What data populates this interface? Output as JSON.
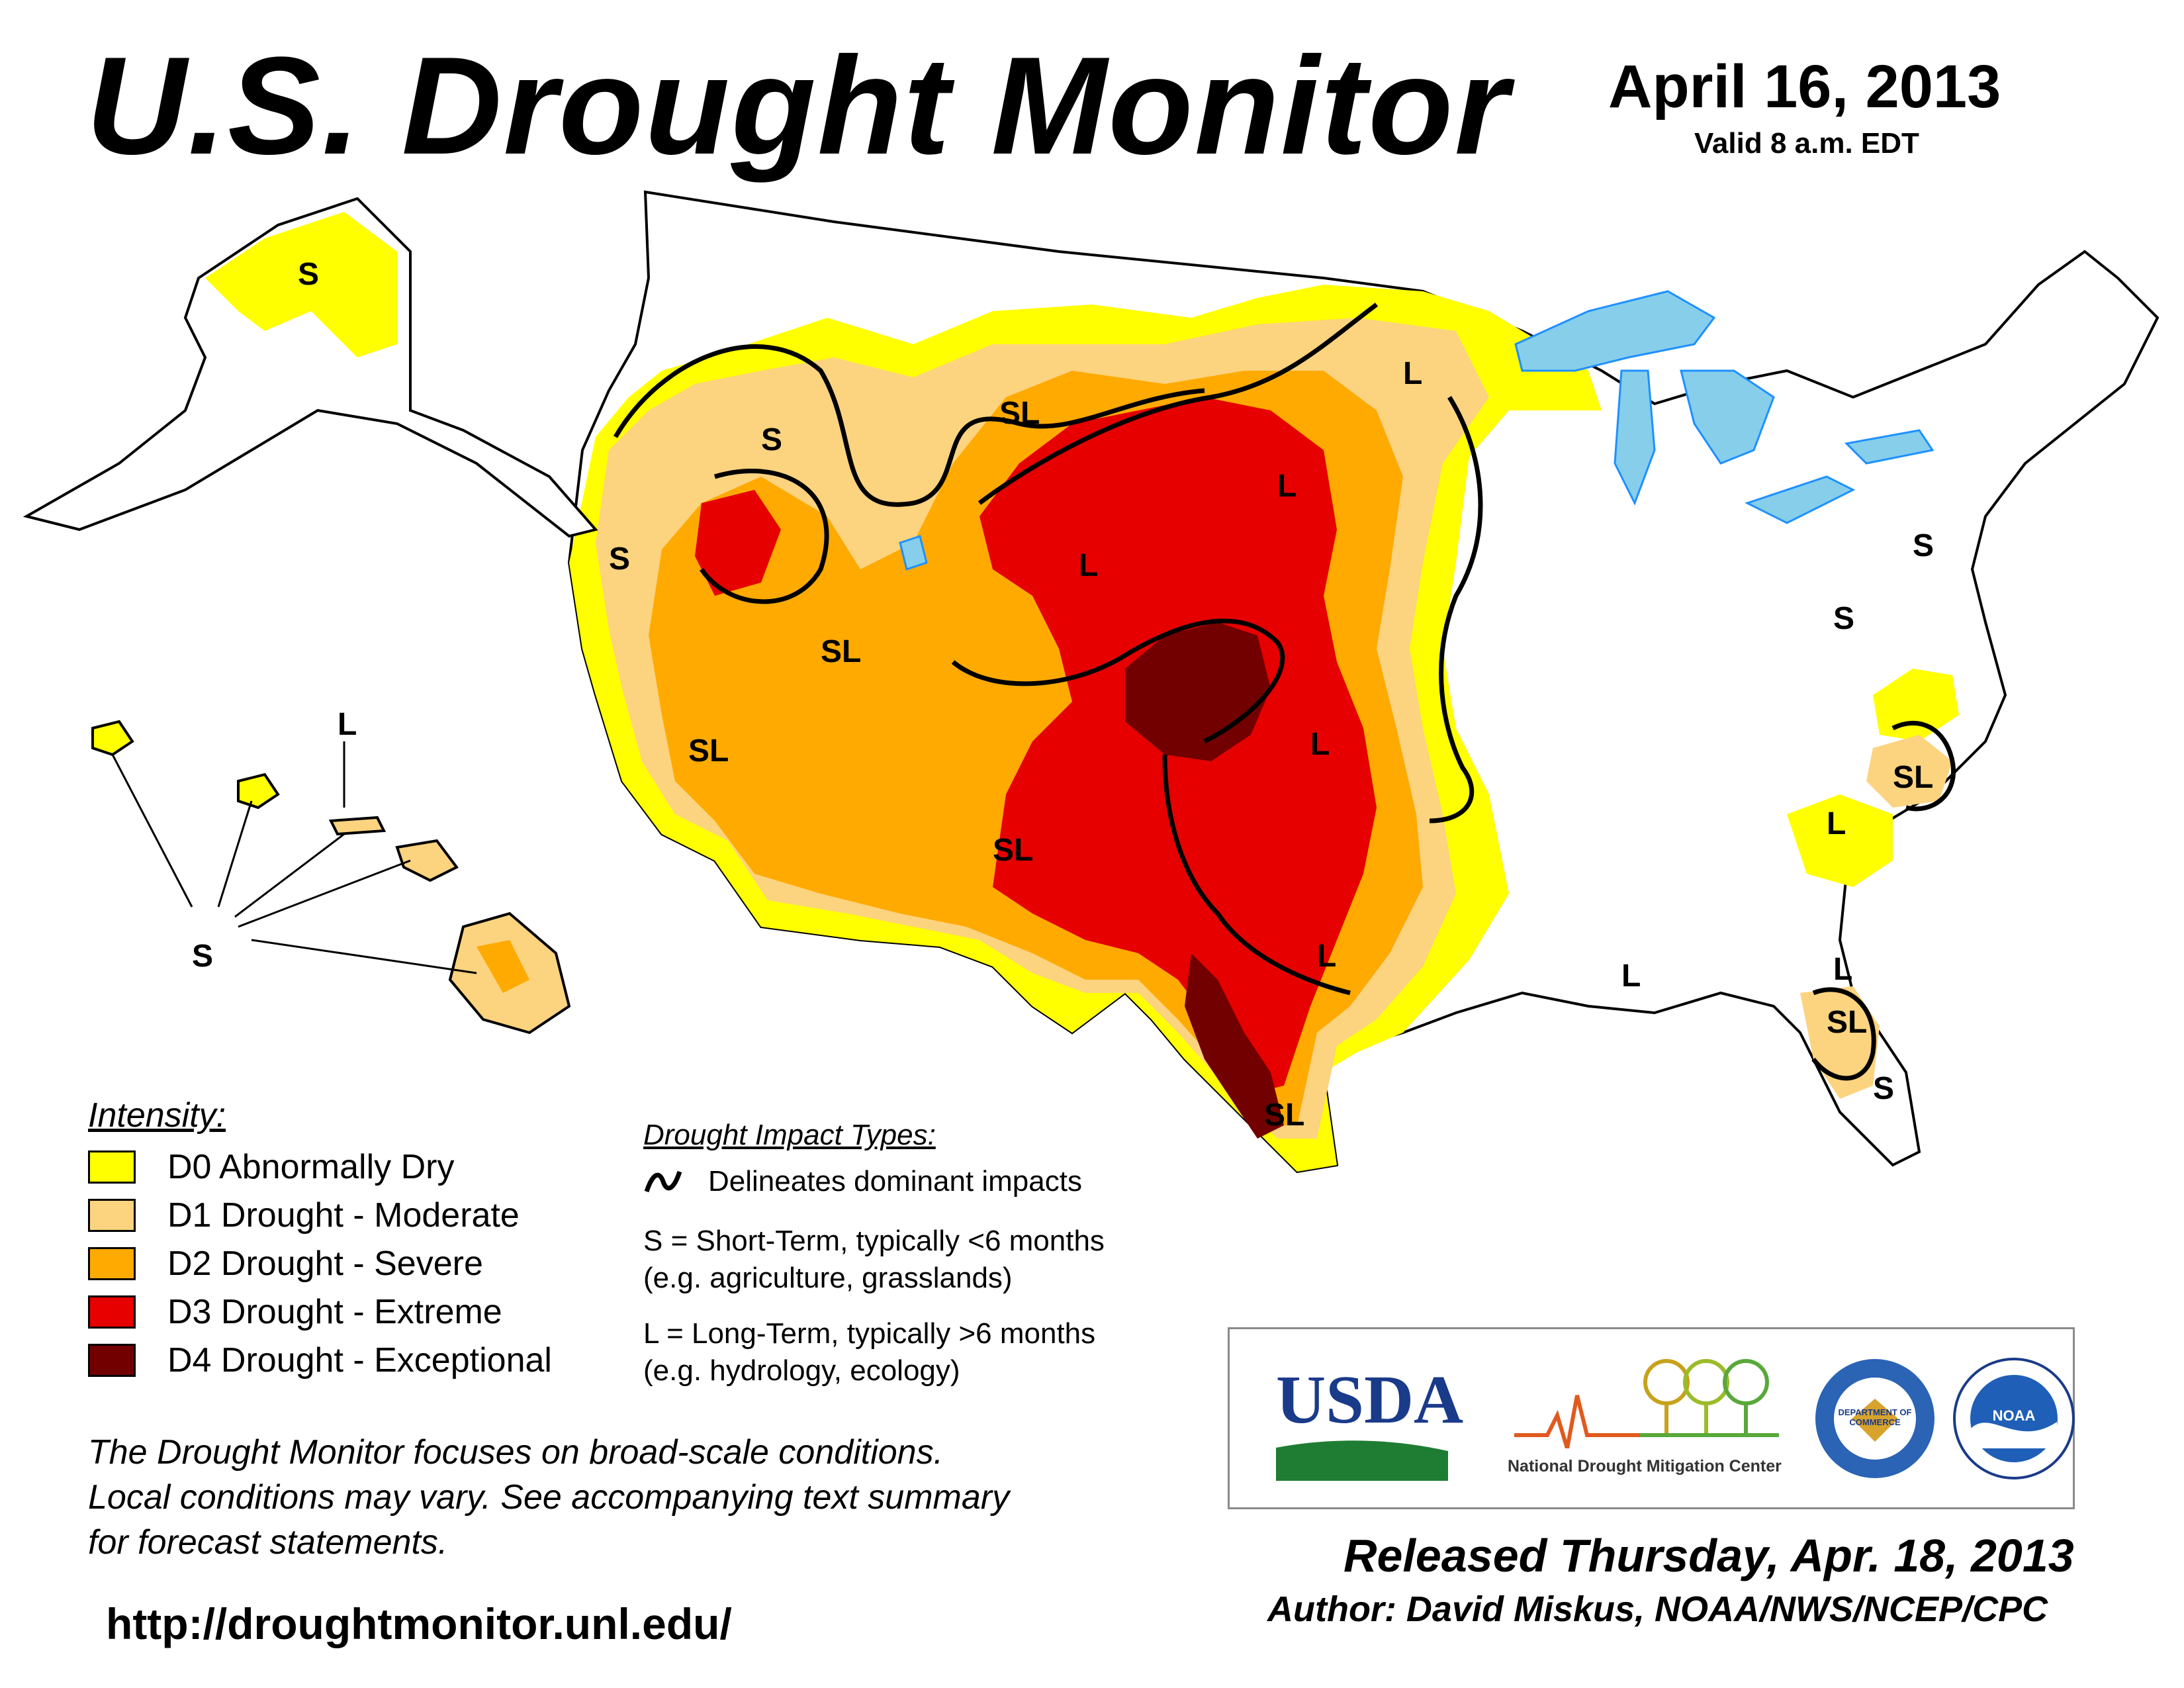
{
  "header": {
    "title": "U.S. Drought Monitor",
    "date": "April 16, 2013",
    "valid": "Valid 8 a.m. EDT"
  },
  "colors": {
    "d0": "#FFFF00",
    "d1": "#FCD37F",
    "d2": "#FFAA00",
    "d3": "#E60000",
    "d4": "#730000",
    "water": "#87CEEB",
    "rivers": "#1E90FF",
    "boundaries": "#000000"
  },
  "map": {
    "impact_labels": {
      "alaska": "S",
      "hawaii_short": "S",
      "hawaii_long": "L",
      "california": "S",
      "great_basin_north": "S",
      "nevada": "SL",
      "southern_california": "SL",
      "wyoming": "SL",
      "colorado": "L",
      "dakotas": "L",
      "minnesota": "L",
      "oklahoma": "L",
      "new_mexico": "SL",
      "texas_central": "L",
      "texas_south": "SL",
      "pennsylvania": "S",
      "virginia": "S",
      "north_carolina": "SL",
      "georgia": "L",
      "louisiana": "L",
      "florida_north": "L",
      "florida_central": "SL",
      "florida_south": "S"
    }
  },
  "legend": {
    "title": "Intensity:",
    "items": [
      {
        "label": "D0 Abnormally Dry",
        "color": "#FFFF00"
      },
      {
        "label": "D1 Drought - Moderate",
        "color": "#FCD37F"
      },
      {
        "label": "D2 Drought - Severe",
        "color": "#FFAA00"
      },
      {
        "label": "D3 Drought - Extreme",
        "color": "#E60000"
      },
      {
        "label": "D4 Drought - Exceptional",
        "color": "#730000"
      }
    ]
  },
  "impact": {
    "title": "Drought Impact Types:",
    "line_label": "Delineates dominant impacts",
    "short_term": "S = Short-Term, typically <6 months",
    "short_term_example": "(e.g. agriculture, grasslands)",
    "long_term": "L = Long-Term, typically >6 months",
    "long_term_example": "(e.g. hydrology, ecology)"
  },
  "note": {
    "line1": "The Drought Monitor focuses on broad-scale conditions.",
    "line2": "Local conditions may vary. See accompanying text summary",
    "line3": "for forecast statements."
  },
  "url": "http://droughtmonitor.unl.edu/",
  "logos": {
    "usda": "USDA",
    "ndmc": "National Drought Mitigation Center",
    "commerce": "DEPARTMENT OF COMMERCE",
    "noaa": "NOAA"
  },
  "footer": {
    "released": "Released Thursday, Apr. 18, 2013",
    "author": "Author: David Miskus, NOAA/NWS/NCEP/CPC"
  }
}
